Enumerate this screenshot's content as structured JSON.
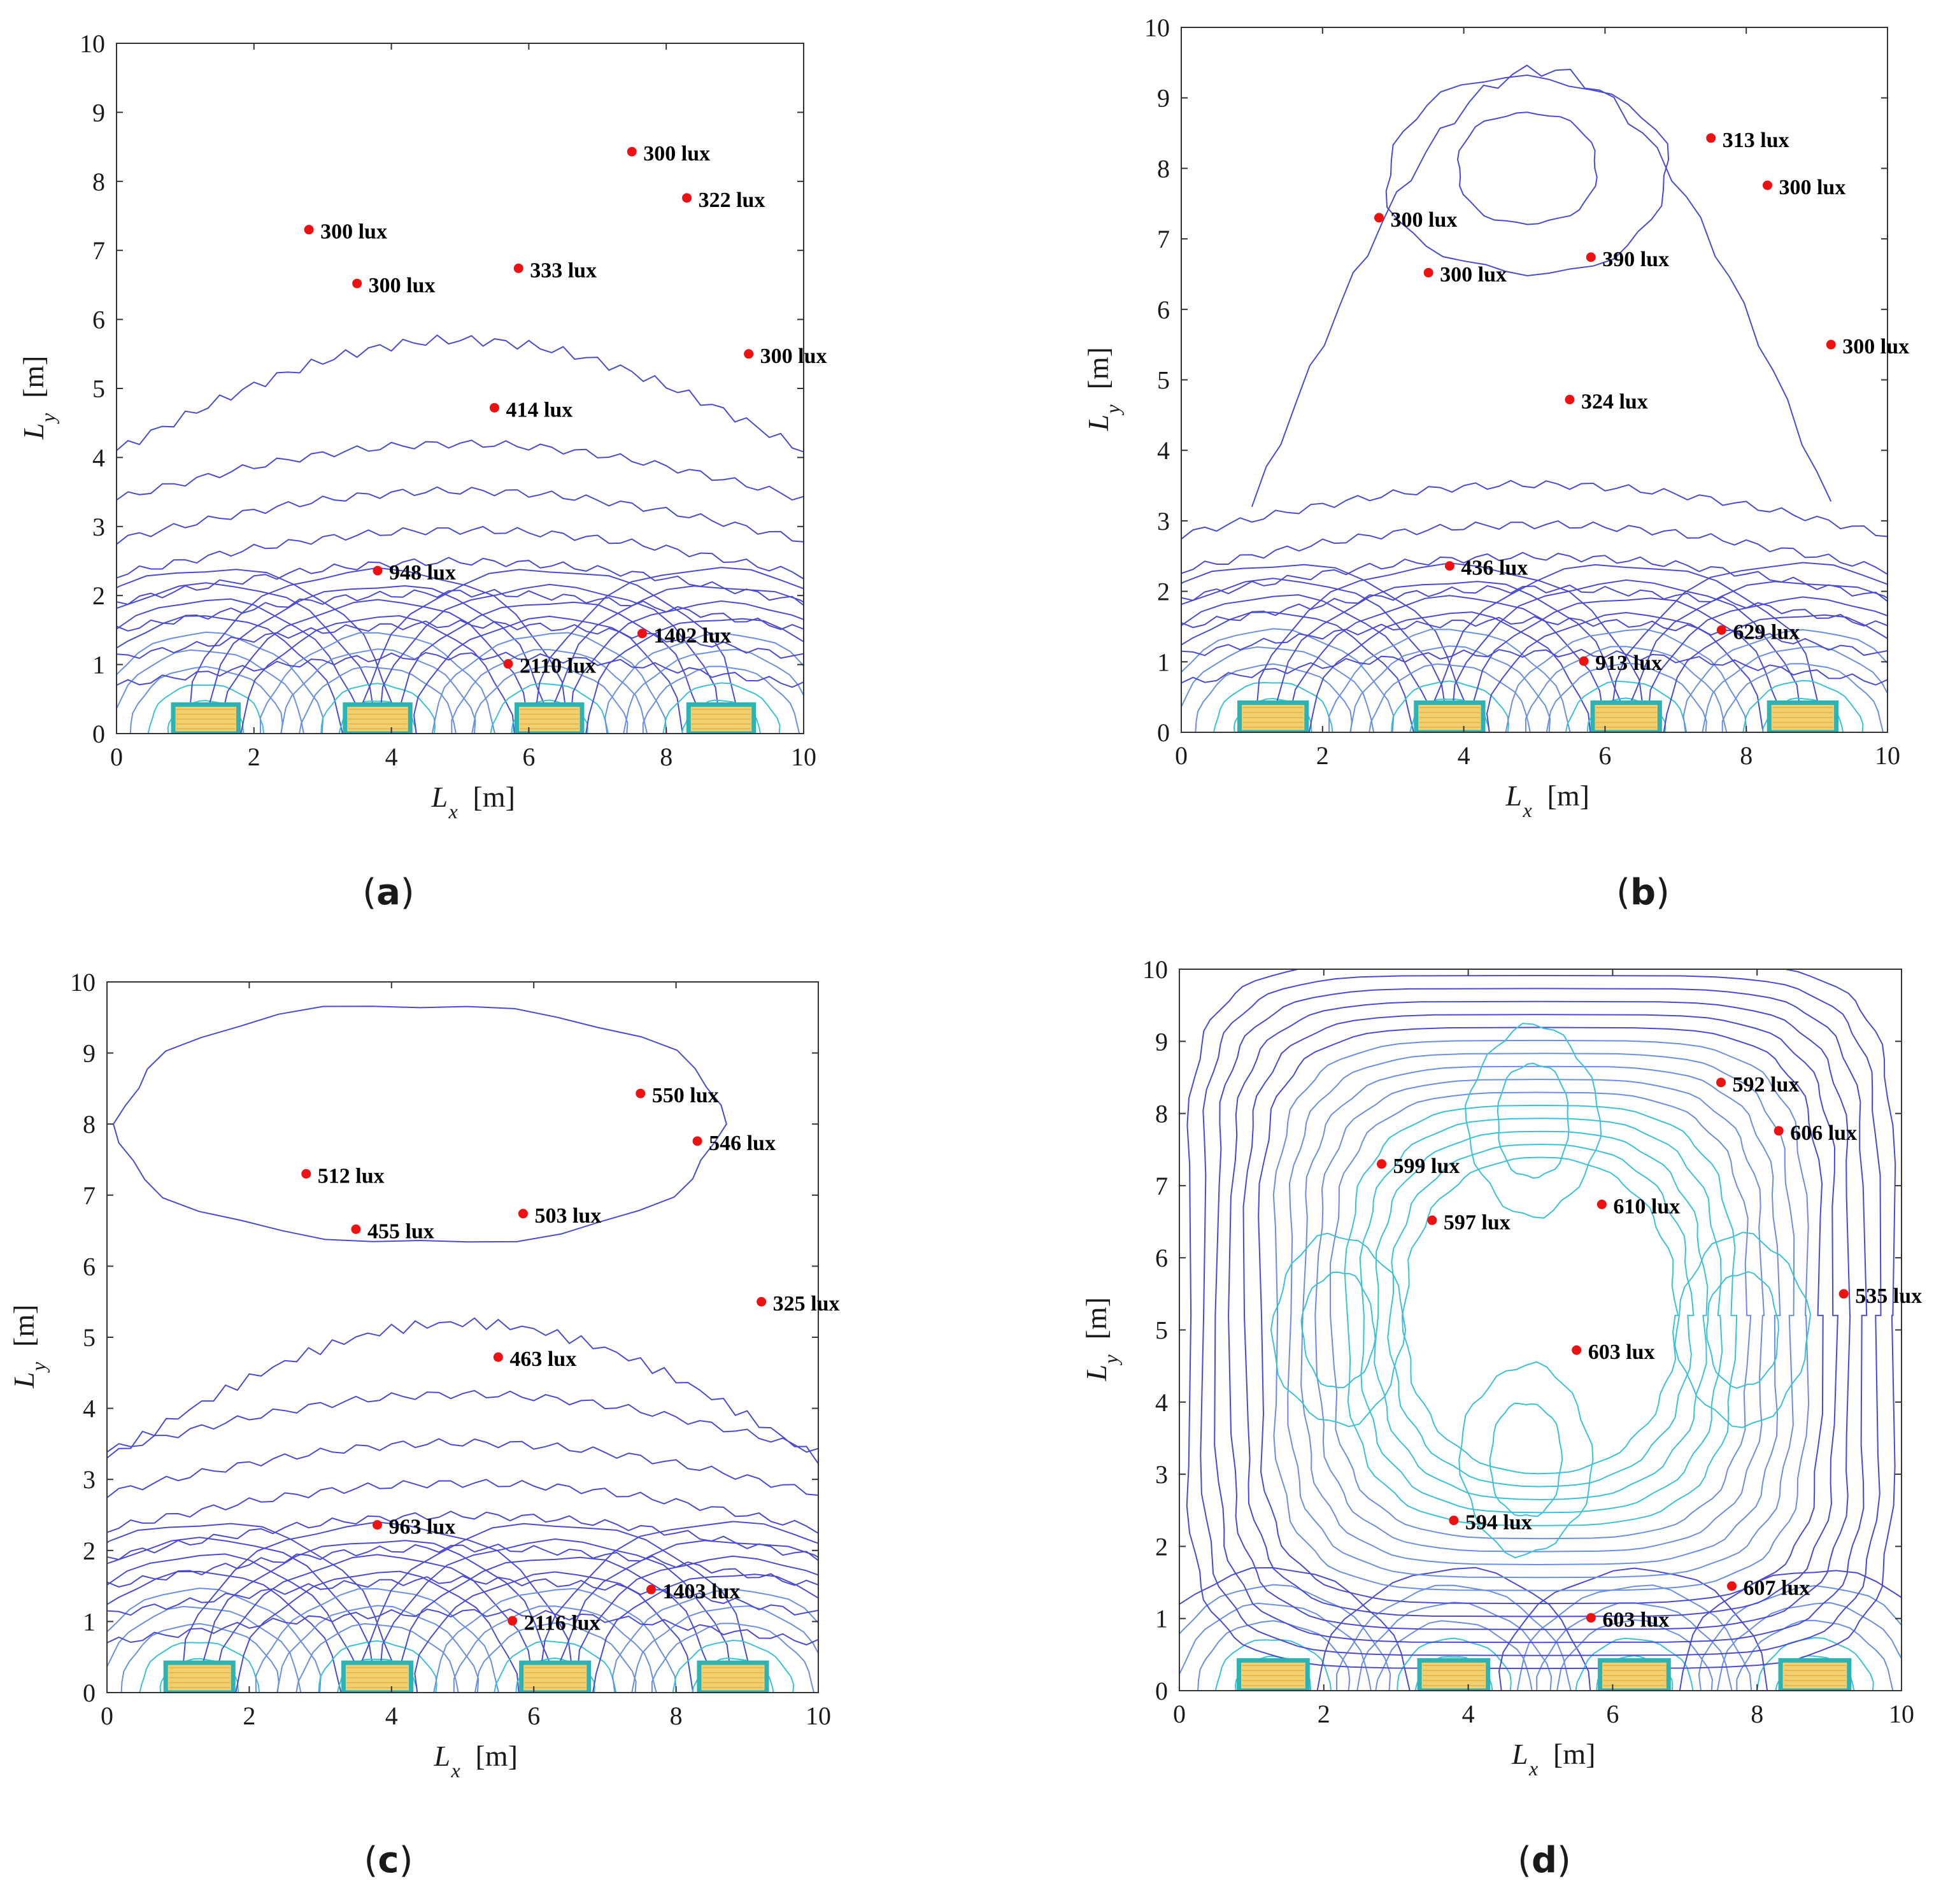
{
  "colors": {
    "axis": "#333333",
    "contour_outer": "#4a4ad0",
    "contour_mid": "#6a8fe0",
    "contour_inner": "#3cc0d8",
    "lamp_frame": "#2db3b3",
    "lamp_fill": "#f0d070",
    "lamp_hot": "#e8b040",
    "point": "#ee1111"
  },
  "chart_data": [
    {
      "type": "scatter",
      "panel": "(a)",
      "panel_letter": "a",
      "xlabel": "L",
      "xlabel_sub": "x",
      "xlabel_unit": "[m]",
      "ylabel": "L",
      "ylabel_sub": "y",
      "ylabel_unit": "[m]",
      "xlim": [
        0,
        10
      ],
      "ylim": [
        0,
        10
      ],
      "xticks": [
        "0",
        "2",
        "4",
        "6",
        "8",
        "10"
      ],
      "yticks": [
        "0",
        "1",
        "2",
        "3",
        "4",
        "5",
        "6",
        "7",
        "8",
        "9",
        "10"
      ],
      "lamps_x": [
        1.3,
        3.8,
        6.3,
        8.8
      ],
      "contour_style": "bottom",
      "points": [
        {
          "x": 7.5,
          "y": 8.43,
          "label": "300 lux"
        },
        {
          "x": 8.3,
          "y": 7.76,
          "label": "322 lux"
        },
        {
          "x": 2.8,
          "y": 7.3,
          "label": "300 lux"
        },
        {
          "x": 3.5,
          "y": 6.52,
          "label": "300 lux"
        },
        {
          "x": 5.85,
          "y": 6.74,
          "label": "333 lux"
        },
        {
          "x": 9.2,
          "y": 5.5,
          "label": "300 lux"
        },
        {
          "x": 5.5,
          "y": 4.72,
          "label": "414 lux"
        },
        {
          "x": 3.8,
          "y": 2.36,
          "label": "948 lux"
        },
        {
          "x": 7.65,
          "y": 1.45,
          "label": "1402 lux"
        },
        {
          "x": 5.7,
          "y": 1.01,
          "label": "2110 lux"
        }
      ]
    },
    {
      "type": "scatter",
      "panel": "(b)",
      "panel_letter": "b",
      "xlabel": "L",
      "xlabel_sub": "x",
      "xlabel_unit": "[m]",
      "ylabel": "L",
      "ylabel_sub": "y",
      "ylabel_unit": "[m]",
      "xlim": [
        0,
        10
      ],
      "ylim": [
        0,
        10
      ],
      "xticks": [
        "0",
        "2",
        "4",
        "6",
        "8",
        "10"
      ],
      "yticks": [
        "0",
        "1",
        "2",
        "3",
        "4",
        "5",
        "6",
        "7",
        "8",
        "9",
        "10"
      ],
      "lamps_x": [
        1.3,
        3.8,
        6.3,
        8.8
      ],
      "contour_style": "bottom_upper",
      "points": [
        {
          "x": 7.5,
          "y": 8.43,
          "label": "313 lux"
        },
        {
          "x": 8.3,
          "y": 7.76,
          "label": "300 lux"
        },
        {
          "x": 2.8,
          "y": 7.3,
          "label": "300 lux"
        },
        {
          "x": 3.5,
          "y": 6.52,
          "label": "300 lux"
        },
        {
          "x": 5.8,
          "y": 6.74,
          "label": "390 lux"
        },
        {
          "x": 9.2,
          "y": 5.5,
          "label": "300 lux"
        },
        {
          "x": 5.5,
          "y": 4.72,
          "label": "324 lux"
        },
        {
          "x": 3.8,
          "y": 2.36,
          "label": "436 lux"
        },
        {
          "x": 7.65,
          "y": 1.45,
          "label": "629 lux"
        },
        {
          "x": 5.7,
          "y": 1.01,
          "label": "913 lux"
        }
      ]
    },
    {
      "type": "scatter",
      "panel": "(c)",
      "panel_letter": "c",
      "xlabel": "L",
      "xlabel_sub": "x",
      "xlabel_unit": "[m]",
      "ylabel": "L",
      "ylabel_sub": "y",
      "ylabel_unit": "[m]",
      "xlim": [
        0,
        10
      ],
      "ylim": [
        0,
        10
      ],
      "xticks": [
        "0",
        "2",
        "4",
        "6",
        "8",
        "10"
      ],
      "yticks": [
        "0",
        "1",
        "2",
        "3",
        "4",
        "5",
        "6",
        "7",
        "8",
        "9",
        "10"
      ],
      "lamps_x": [
        1.3,
        3.8,
        6.3,
        8.8
      ],
      "contour_style": "bottom_cloud",
      "points": [
        {
          "x": 7.5,
          "y": 8.43,
          "label": "550 lux"
        },
        {
          "x": 8.3,
          "y": 7.76,
          "label": "546 lux"
        },
        {
          "x": 2.8,
          "y": 7.3,
          "label": "512 lux"
        },
        {
          "x": 3.5,
          "y": 6.52,
          "label": "455 lux"
        },
        {
          "x": 5.85,
          "y": 6.74,
          "label": "503 lux"
        },
        {
          "x": 9.2,
          "y": 5.5,
          "label": "325 lux"
        },
        {
          "x": 5.5,
          "y": 4.72,
          "label": "463 lux"
        },
        {
          "x": 3.8,
          "y": 2.36,
          "label": "963 lux"
        },
        {
          "x": 7.65,
          "y": 1.45,
          "label": "1403 lux"
        },
        {
          "x": 5.7,
          "y": 1.01,
          "label": "2116 lux"
        }
      ]
    },
    {
      "type": "scatter",
      "panel": "(d)",
      "panel_letter": "d",
      "xlabel": "L",
      "xlabel_sub": "x",
      "xlabel_unit": "[m]",
      "ylabel": "L",
      "ylabel_sub": "y",
      "ylabel_unit": "[m]",
      "xlim": [
        0,
        10
      ],
      "ylim": [
        0,
        10
      ],
      "xticks": [
        "0",
        "2",
        "4",
        "6",
        "8",
        "10"
      ],
      "yticks": [
        "0",
        "1",
        "2",
        "3",
        "4",
        "5",
        "6",
        "7",
        "8",
        "9",
        "10"
      ],
      "lamps_x": [
        1.3,
        3.8,
        6.3,
        8.8
      ],
      "contour_style": "uniform",
      "points": [
        {
          "x": 7.5,
          "y": 8.43,
          "label": "592 lux"
        },
        {
          "x": 8.3,
          "y": 7.76,
          "label": "606 lux"
        },
        {
          "x": 2.8,
          "y": 7.3,
          "label": "599 lux"
        },
        {
          "x": 3.5,
          "y": 6.52,
          "label": "597 lux"
        },
        {
          "x": 5.85,
          "y": 6.74,
          "label": "610 lux"
        },
        {
          "x": 9.2,
          "y": 5.5,
          "label": "535 lux"
        },
        {
          "x": 5.5,
          "y": 4.72,
          "label": "603 lux"
        },
        {
          "x": 3.8,
          "y": 2.36,
          "label": "594 lux"
        },
        {
          "x": 7.65,
          "y": 1.45,
          "label": "607 lux"
        },
        {
          "x": 5.7,
          "y": 1.01,
          "label": "603 lux"
        }
      ]
    }
  ]
}
